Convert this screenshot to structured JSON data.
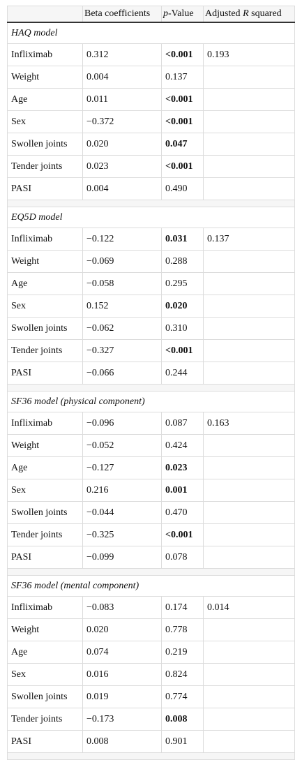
{
  "header": {
    "columns": [
      [
        {
          "text": "Beta coefficients"
        }
      ],
      [
        {
          "text": "p",
          "italic": true
        },
        {
          "text": "-Value"
        }
      ],
      [
        {
          "text": "Adjusted "
        },
        {
          "text": "R",
          "italic": true
        },
        {
          "text": " squared"
        }
      ]
    ]
  },
  "sections": [
    {
      "title": "HAQ model",
      "rows": [
        {
          "cells": [
            "Infliximab",
            "0.312",
            "<0.001",
            "0.193"
          ],
          "p_bold": true
        },
        {
          "cells": [
            "Weight",
            "0.004",
            "0.137"
          ],
          "p_bold": false
        },
        {
          "cells": [
            "Age",
            "0.011",
            "<0.001"
          ],
          "p_bold": true
        },
        {
          "cells": [
            "Sex",
            "−0.372",
            "<0.001"
          ],
          "p_bold": true
        },
        {
          "cells": [
            "Swollen joints",
            "0.020",
            "0.047"
          ],
          "p_bold": true
        },
        {
          "cells": [
            "Tender joints",
            "0.023",
            "<0.001"
          ],
          "p_bold": true
        },
        {
          "cells": [
            "PASI",
            "0.004",
            "0.490"
          ],
          "p_bold": false
        }
      ]
    },
    {
      "title": "EQ5D model",
      "rows": [
        {
          "cells": [
            "Infliximab",
            "−0.122",
            "0.031",
            "0.137"
          ],
          "p_bold": true
        },
        {
          "cells": [
            "Weight",
            "−0.069",
            "0.288"
          ],
          "p_bold": false
        },
        {
          "cells": [
            "Age",
            "−0.058",
            "0.295"
          ],
          "p_bold": false
        },
        {
          "cells": [
            "Sex",
            "0.152",
            "0.020"
          ],
          "p_bold": true
        },
        {
          "cells": [
            "Swollen joints",
            "−0.062",
            "0.310"
          ],
          "p_bold": false
        },
        {
          "cells": [
            "Tender joints",
            "−0.327",
            "<0.001"
          ],
          "p_bold": true
        },
        {
          "cells": [
            "PASI",
            "−0.066",
            "0.244"
          ],
          "p_bold": false
        }
      ]
    },
    {
      "title": "SF36 model (physical component)",
      "rows": [
        {
          "cells": [
            "Infliximab",
            "−0.096",
            "0.087",
            "0.163"
          ],
          "p_bold": false
        },
        {
          "cells": [
            "Weight",
            "−0.052",
            "0.424"
          ],
          "p_bold": false
        },
        {
          "cells": [
            "Age",
            "−0.127",
            "0.023"
          ],
          "p_bold": true
        },
        {
          "cells": [
            "Sex",
            "0.216",
            "0.001"
          ],
          "p_bold": true
        },
        {
          "cells": [
            "Swollen joints",
            "−0.044",
            "0.470"
          ],
          "p_bold": false
        },
        {
          "cells": [
            "Tender joints",
            "−0.325",
            "<0.001"
          ],
          "p_bold": true
        },
        {
          "cells": [
            "PASI",
            "−0.099",
            "0.078"
          ],
          "p_bold": false
        }
      ]
    },
    {
      "title": "SF36 model (mental component)",
      "rows": [
        {
          "cells": [
            "Infliximab",
            "−0.083",
            "0.174",
            "0.014"
          ],
          "p_bold": false
        },
        {
          "cells": [
            "Weight",
            "0.020",
            "0.778"
          ],
          "p_bold": false
        },
        {
          "cells": [
            "Age",
            "0.074",
            "0.219"
          ],
          "p_bold": false
        },
        {
          "cells": [
            "Sex",
            "0.016",
            "0.824"
          ],
          "p_bold": false
        },
        {
          "cells": [
            "Swollen joints",
            "0.019",
            "0.774"
          ],
          "p_bold": false
        },
        {
          "cells": [
            "Tender joints",
            "−0.173",
            "0.008"
          ],
          "p_bold": true
        },
        {
          "cells": [
            "PASI",
            "0.008",
            "0.901"
          ],
          "p_bold": false
        }
      ]
    }
  ]
}
